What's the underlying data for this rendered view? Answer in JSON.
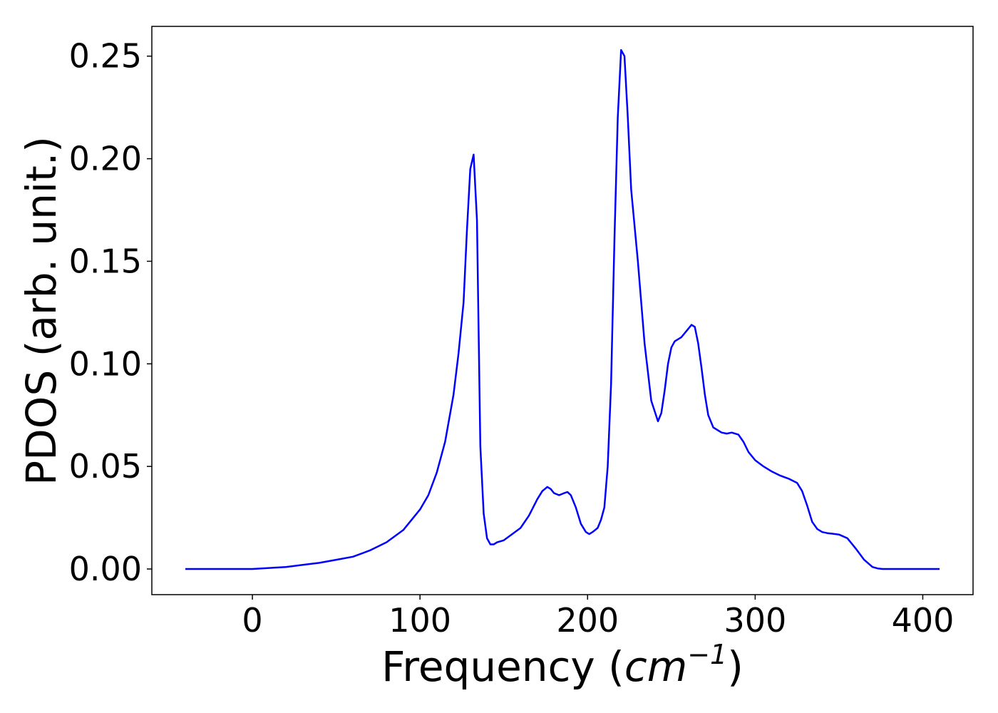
{
  "chart_data": {
    "type": "line",
    "title": "",
    "xlabel_text": "Frequency (",
    "xlabel_unit_base": "cm",
    "xlabel_unit_exp": "−1",
    "xlabel_close": ")",
    "ylabel": "PDOS (arb. unit.)",
    "xlim": [
      -60,
      430
    ],
    "ylim": [
      -0.0125,
      0.2645
    ],
    "xticks": [
      0,
      100,
      200,
      300,
      400
    ],
    "xtick_labels": [
      "0",
      "100",
      "200",
      "300",
      "400"
    ],
    "yticks": [
      0.0,
      0.05,
      0.1,
      0.15,
      0.2,
      0.25
    ],
    "ytick_labels": [
      "0.00",
      "0.05",
      "0.10",
      "0.15",
      "0.20",
      "0.25"
    ],
    "grid": false,
    "legend": "none",
    "series": [
      {
        "color": "#0000ff",
        "x": [
          -40,
          0,
          10,
          20,
          30,
          40,
          50,
          60,
          70,
          80,
          90,
          100,
          105,
          110,
          115,
          120,
          123,
          126,
          128,
          130,
          132,
          134,
          136,
          138,
          140,
          142,
          144,
          146,
          150,
          155,
          160,
          165,
          170,
          173,
          176,
          178,
          180,
          183,
          186,
          188,
          190,
          193,
          196,
          199,
          201,
          203,
          206,
          208,
          210,
          212,
          214,
          216,
          218,
          220,
          222,
          224,
          226,
          230,
          234,
          238,
          242,
          244,
          246,
          248,
          250,
          252,
          254,
          256,
          258,
          260,
          262,
          264,
          266,
          268,
          270,
          272,
          275,
          278,
          280,
          283,
          286,
          290,
          293,
          296,
          300,
          305,
          310,
          315,
          320,
          325,
          328,
          331,
          334,
          337,
          340,
          343,
          346,
          350,
          355,
          360,
          365,
          370,
          373,
          376,
          380,
          390,
          410
        ],
        "y": [
          0.0,
          0.0,
          0.0005,
          0.001,
          0.002,
          0.003,
          0.0045,
          0.006,
          0.009,
          0.013,
          0.019,
          0.029,
          0.036,
          0.047,
          0.062,
          0.085,
          0.105,
          0.13,
          0.165,
          0.195,
          0.202,
          0.17,
          0.06,
          0.027,
          0.015,
          0.012,
          0.012,
          0.013,
          0.014,
          0.017,
          0.02,
          0.026,
          0.034,
          0.038,
          0.04,
          0.039,
          0.037,
          0.036,
          0.037,
          0.0375,
          0.036,
          0.03,
          0.022,
          0.018,
          0.017,
          0.018,
          0.02,
          0.024,
          0.03,
          0.05,
          0.09,
          0.16,
          0.22,
          0.253,
          0.25,
          0.22,
          0.185,
          0.15,
          0.11,
          0.082,
          0.072,
          0.076,
          0.087,
          0.1,
          0.108,
          0.111,
          0.112,
          0.113,
          0.115,
          0.117,
          0.119,
          0.118,
          0.11,
          0.098,
          0.085,
          0.075,
          0.069,
          0.0675,
          0.0665,
          0.066,
          0.0665,
          0.0655,
          0.062,
          0.057,
          0.053,
          0.05,
          0.0475,
          0.0455,
          0.044,
          0.042,
          0.038,
          0.031,
          0.023,
          0.0195,
          0.018,
          0.0175,
          0.0172,
          0.0168,
          0.015,
          0.01,
          0.0045,
          0.001,
          0.0003,
          0.0,
          0.0,
          0.0,
          0.0
        ]
      }
    ]
  }
}
